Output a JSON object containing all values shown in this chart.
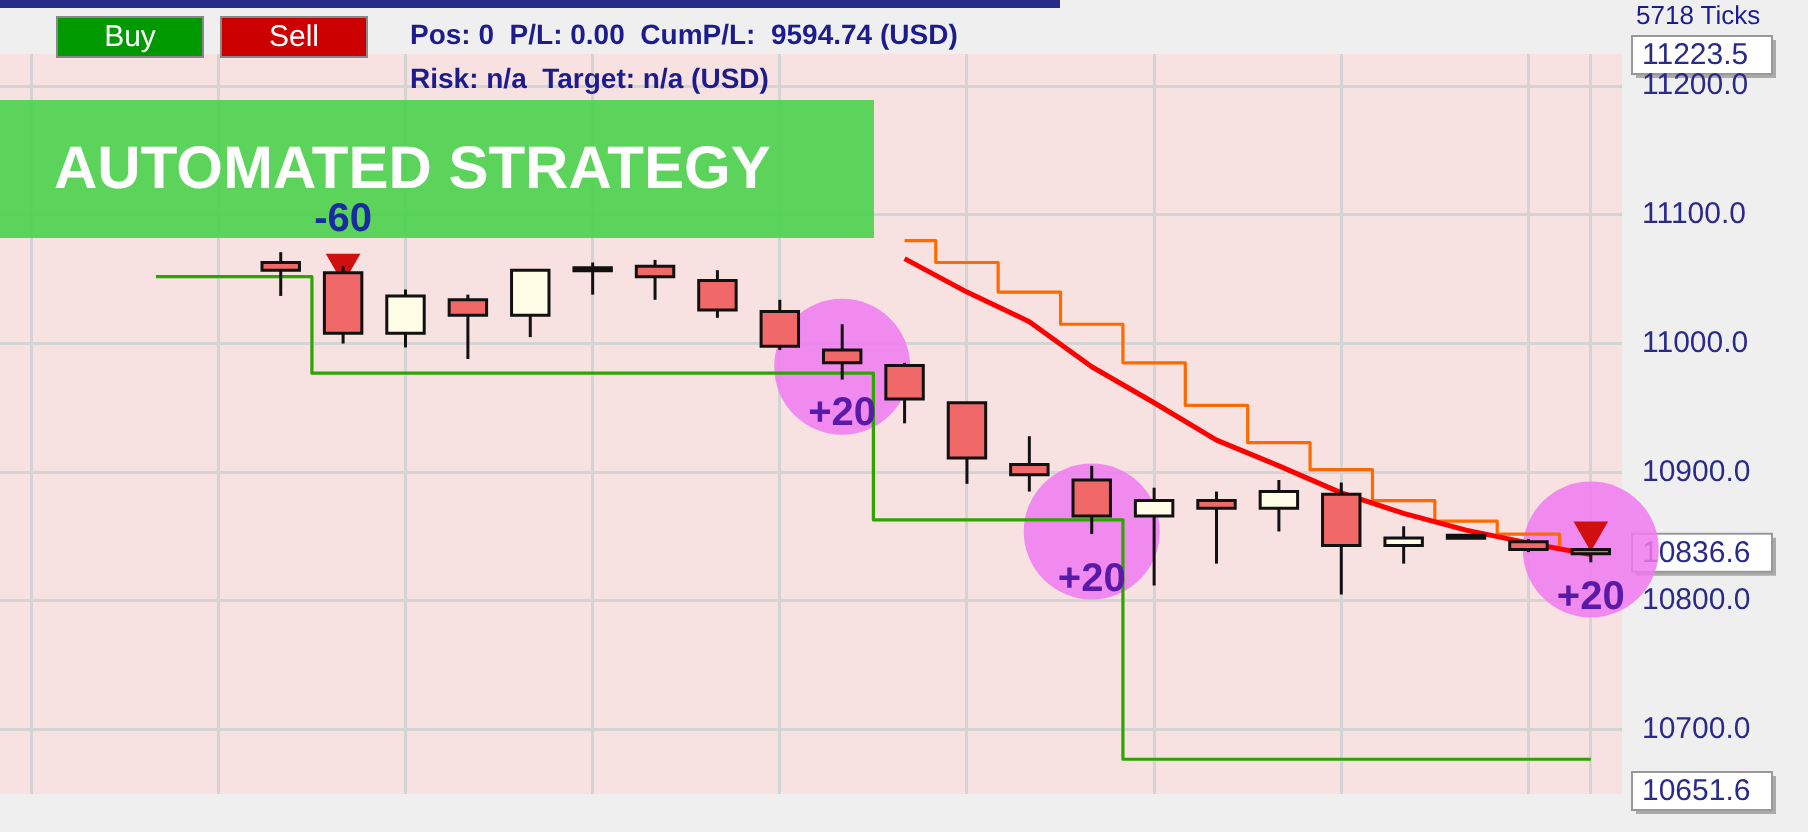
{
  "chart_data": {
    "type": "candlestick",
    "title": "AUTOMATED STRATEGY",
    "categories": [
      null,
      null,
      null,
      null,
      null,
      null,
      null,
      null,
      null,
      null,
      null,
      null,
      null,
      null,
      null,
      null,
      null,
      null,
      null,
      null,
      null,
      null,
      null,
      null,
      null,
      null
    ],
    "ohlc": [
      null,
      null,
      null,
      null,
      [
        11063,
        11071,
        11037,
        11057
      ],
      [
        11055,
        11060,
        11000,
        11008
      ],
      [
        11008,
        11042,
        10997,
        11037
      ],
      [
        11034,
        11038,
        10988,
        11022
      ],
      [
        11022,
        11057,
        11005,
        11057
      ],
      [
        11057,
        11063,
        11038,
        11059
      ],
      [
        11060,
        11065,
        11034,
        11052
      ],
      [
        11049,
        11057,
        11020,
        11026
      ],
      [
        11025,
        11034,
        10995,
        10998
      ],
      [
        10995,
        11015,
        10972,
        10985
      ],
      [
        10983,
        10985,
        10938,
        10957
      ],
      [
        10954,
        10954,
        10891,
        10911
      ],
      [
        10906,
        10928,
        10885,
        10898
      ],
      [
        10894,
        10905,
        10852,
        10866
      ],
      [
        10866,
        10888,
        10812,
        10878
      ],
      [
        10878,
        10885,
        10829,
        10872
      ],
      [
        10872,
        10894,
        10854,
        10885
      ],
      [
        10883,
        10892,
        10805,
        10843
      ],
      [
        10843,
        10858,
        10829,
        10849
      ],
      [
        10851,
        10852,
        10848,
        10849
      ],
      [
        10846,
        10848,
        10838,
        10840
      ],
      [
        10840,
        10841,
        10830,
        10836.6
      ]
    ],
    "series": [
      {
        "type": "line",
        "color": "#ff0000",
        "values": [
          null,
          null,
          null,
          null,
          null,
          null,
          null,
          null,
          null,
          null,
          null,
          null,
          null,
          null,
          11066,
          11040,
          11017,
          10982,
          10954,
          10925,
          10905,
          10884,
          10868,
          10855,
          10845,
          10836
        ]
      },
      {
        "type": "step",
        "color": "#ff6a00",
        "values": [
          null,
          null,
          null,
          null,
          null,
          null,
          null,
          null,
          null,
          null,
          null,
          null,
          null,
          null,
          11080,
          11063,
          11040,
          11015,
          10985,
          10952,
          10923,
          10902,
          10878,
          10862,
          10852,
          10840
        ]
      },
      {
        "type": "step",
        "color": "#2ea400",
        "values": [
          null,
          null,
          11052,
          11052,
          11052,
          10977,
          10977,
          10977,
          10977,
          10977,
          10977,
          10977,
          10977,
          10977,
          10863,
          10863,
          10863,
          10863,
          10677,
          10677,
          10677,
          10677,
          10677,
          10677,
          10677,
          10677
        ]
      },
      {
        "type": "scatter",
        "marker": "circle",
        "color": "#f07af0",
        "values": [
          null,
          null,
          null,
          null,
          null,
          null,
          null,
          null,
          null,
          null,
          null,
          null,
          null,
          10982,
          null,
          null,
          null,
          10854,
          null,
          null,
          null,
          null,
          null,
          null,
          null,
          10840
        ]
      },
      {
        "type": "scatter",
        "marker": "triangle",
        "color": "#d01010",
        "values": [
          null,
          null,
          null,
          null,
          null,
          11062,
          null,
          null,
          null,
          null,
          null,
          null,
          null,
          null,
          null,
          null,
          null,
          null,
          null,
          null,
          null,
          null,
          null,
          null,
          null,
          10854
        ]
      }
    ],
    "ylim": [
      10650,
      11225
    ],
    "yticks": [
      10651.6,
      {
        "value": 10700,
        "label": "10700.0"
      },
      {
        "value": 10800,
        "label": "10800.0"
      },
      10836.6,
      {
        "value": 10900,
        "label": "10900.0"
      },
      {
        "value": 11000,
        "label": "11000.0"
      },
      {
        "value": 11100,
        "label": "11100.0"
      },
      {
        "value": 11200,
        "label": "11200.0"
      },
      11223.5
    ],
    "tick_labels": "y",
    "grid": true,
    "legend": false,
    "annotations": [
      "Buy",
      "Sell",
      "Pos: 0  P/L: 0.00  CumP/L:  9594.74 (USD)",
      "Risk: n/a  Target: n/a (USD)",
      "5718 Ticks",
      "-60",
      "+20",
      "+20",
      "+20"
    ]
  }
}
